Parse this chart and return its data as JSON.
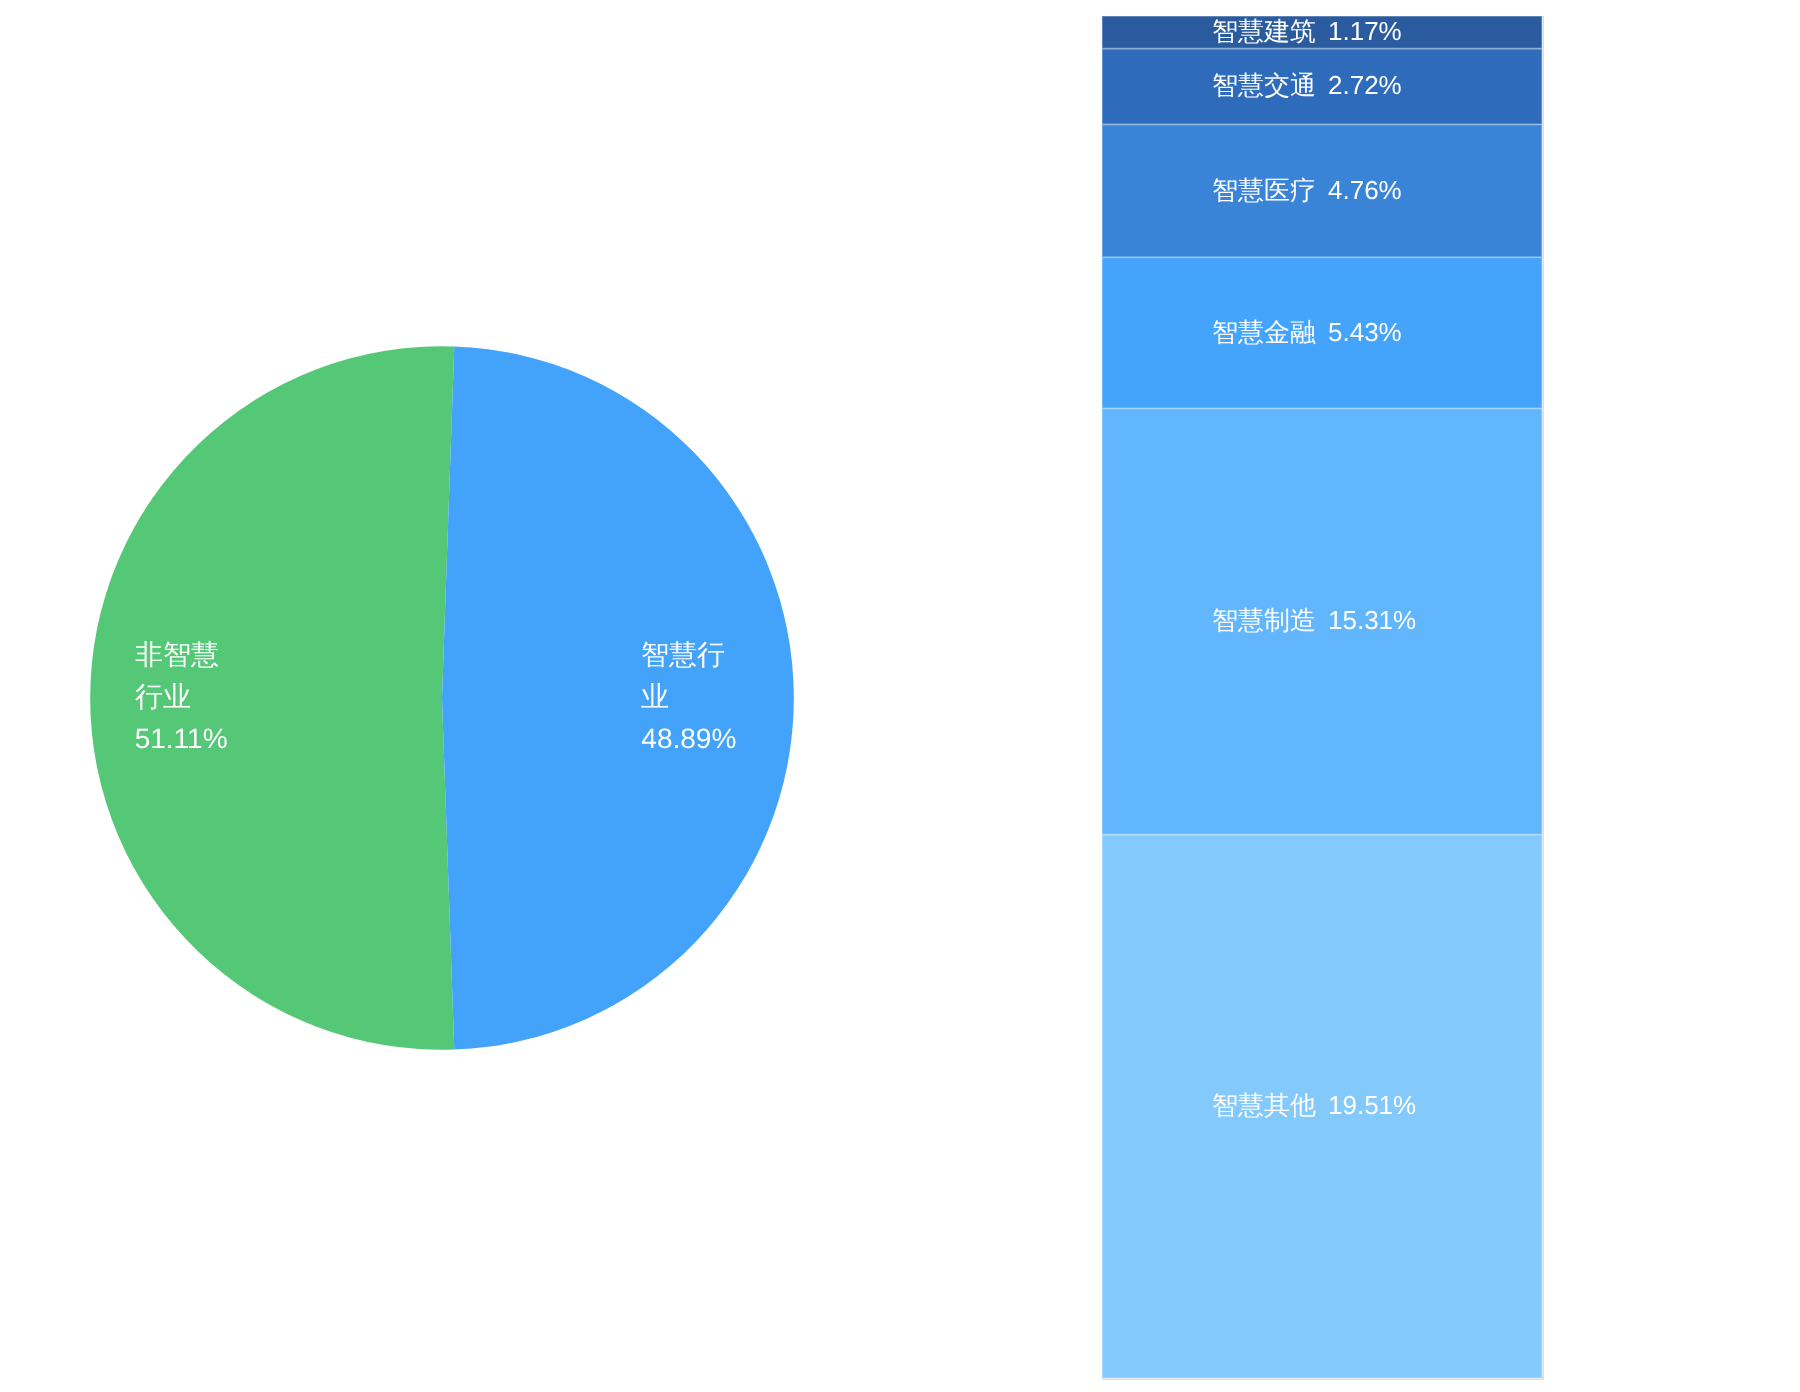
{
  "chart_data": [
    {
      "type": "pie",
      "categories": [
        "非智慧行业",
        "智慧行业"
      ],
      "values": [
        51.11,
        48.89
      ],
      "colors": [
        "#55c878",
        "#43a2fa"
      ],
      "value_labels": [
        "51.11%",
        "48.89%"
      ],
      "legend": false
    },
    {
      "type": "bar",
      "stacked": true,
      "categories": [
        null
      ],
      "tick_labels": false,
      "legend": false,
      "series": [
        {
          "name": "智慧其他",
          "color": "#83c9fb",
          "values": [
            19.51
          ],
          "value_labels": [
            "19.51%"
          ]
        },
        {
          "name": "智慧制造",
          "color": "#61b6fe",
          "values": [
            15.31
          ],
          "value_labels": [
            "15.31%"
          ]
        },
        {
          "name": "智慧金融",
          "color": "#44a3fb",
          "values": [
            5.43
          ],
          "value_labels": [
            "5.43%"
          ]
        },
        {
          "name": "智慧医疗",
          "color": "#3a84d8",
          "values": [
            4.76
          ],
          "value_labels": [
            "4.76%"
          ]
        },
        {
          "name": "智慧交通",
          "color": "#2e6bbb",
          "values": [
            2.72
          ],
          "value_labels": [
            "2.72%"
          ]
        },
        {
          "name": "智慧建筑",
          "color": "#2a5b9e",
          "values": [
            1.17
          ],
          "value_labels": [
            "1.17%"
          ]
        }
      ]
    }
  ]
}
